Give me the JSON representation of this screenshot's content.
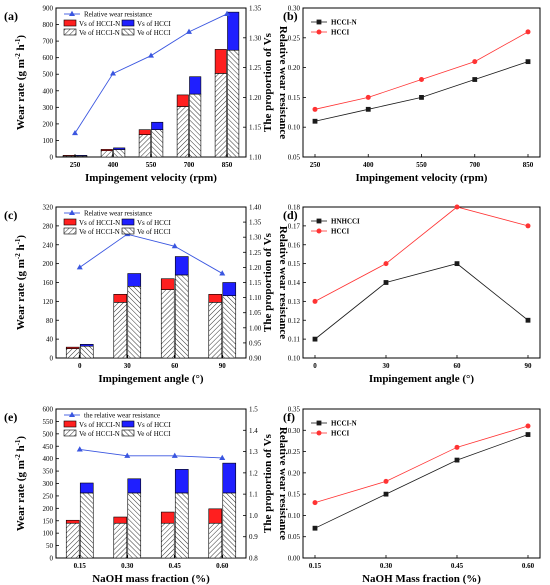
{
  "colors": {
    "red": "#ff1f1f",
    "blue": "#1f1fff",
    "tri": "#3a56e0",
    "black": "#1a1a1a",
    "redline": "#ff3333"
  },
  "chart_data": [
    {
      "panel": "(a)",
      "type": "bar",
      "categories": [
        "250",
        "400",
        "550",
        "700",
        "850"
      ],
      "xlabel": "Impingement velocity (rpm)",
      "ylabel": "Wear rate (g m-2 h-1)",
      "y2label": "Relative wear resistance",
      "ylim": [
        0,
        900
      ],
      "yticks": [
        "0",
        "100",
        "200",
        "300",
        "400",
        "500",
        "600",
        "700",
        "800",
        "900"
      ],
      "y2lim": [
        1.1,
        1.35
      ],
      "y2ticks": [
        "1.10",
        "1.15",
        "1.20",
        "1.25",
        "1.30",
        "1.35"
      ],
      "legend": [
        "Relative wear resistance",
        "Vs of HCCI-N",
        "Ve of HCCI-N",
        "Vs of HCCI",
        "Ve of HCCI"
      ],
      "series": [
        {
          "name": "Ve of HCCI-N",
          "values": [
            5,
            38,
            135,
            305,
            505
          ]
        },
        {
          "name": "Vs of HCCI-N",
          "values": [
            5,
            8,
            30,
            70,
            145
          ]
        },
        {
          "name": "Ve of HCCI",
          "values": [
            5,
            45,
            165,
            380,
            645
          ]
        },
        {
          "name": "Vs of HCCI",
          "values": [
            5,
            10,
            45,
            105,
            230
          ]
        },
        {
          "name": "Relative wear resistance",
          "values": [
            1.14,
            1.24,
            1.27,
            1.31,
            1.34
          ]
        }
      ]
    },
    {
      "panel": "(b)",
      "type": "line",
      "categories": [
        "250",
        "400",
        "550",
        "700",
        "850"
      ],
      "xlabel": "Impingement velocity (rpm)",
      "ylabel": "The proportion of Vs",
      "ylim": [
        0.05,
        0.3
      ],
      "yticks": [
        "0.05",
        "0.10",
        "0.15",
        "0.20",
        "0.25",
        "0.30"
      ],
      "legend": [
        "HCCI-N",
        "HCCI"
      ],
      "series": [
        {
          "name": "HCCI-N",
          "values": [
            0.11,
            0.13,
            0.15,
            0.18,
            0.21
          ]
        },
        {
          "name": "HCCI",
          "values": [
            0.13,
            0.15,
            0.18,
            0.21,
            0.26
          ]
        }
      ]
    },
    {
      "panel": "(c)",
      "type": "bar",
      "categories": [
        "0",
        "30",
        "60",
        "90"
      ],
      "xlabel": "Impingement angle (°)",
      "ylabel": "Wear rate (g m-2 h-1)",
      "y2label": "Relative wear resistance",
      "ylim": [
        0,
        320
      ],
      "yticks": [
        "0",
        "40",
        "80",
        "120",
        "160",
        "200",
        "240",
        "280",
        "320"
      ],
      "y2lim": [
        0.9,
        1.4
      ],
      "y2ticks": [
        "0.90",
        "0.95",
        "1.00",
        "1.05",
        "1.10",
        "1.15",
        "1.20",
        "1.25",
        "1.30",
        "1.35",
        "1.40"
      ],
      "legend": [
        "Relative wear resistance",
        "Vs of HCCI-N",
        "Ve of HCCI-N",
        "Vs of HCCI",
        "Ve of HCCI"
      ],
      "series": [
        {
          "name": "Ve of HCCI-N",
          "values": [
            20,
            118,
            145,
            118
          ]
        },
        {
          "name": "Vs of HCCI-N",
          "values": [
            3,
            17,
            23,
            17
          ]
        },
        {
          "name": "Ve of HCCI",
          "values": [
            25,
            152,
            176,
            132
          ]
        },
        {
          "name": "Vs of HCCI",
          "values": [
            4,
            27,
            39,
            28
          ]
        },
        {
          "name": "Relative wear resistance",
          "values": [
            1.2,
            1.31,
            1.27,
            1.18
          ]
        }
      ]
    },
    {
      "panel": "(d)",
      "type": "line",
      "categories": [
        "0",
        "30",
        "60",
        "90"
      ],
      "xlabel": "Impingement angle (°)",
      "ylabel": "The proportion of Vs",
      "ylim": [
        0.1,
        0.18
      ],
      "yticks": [
        "0.10",
        "0.11",
        "0.12",
        "0.13",
        "0.14",
        "0.15",
        "0.16",
        "0.17",
        "0.18"
      ],
      "legend": [
        "HNHCCI",
        "HCCI"
      ],
      "series": [
        {
          "name": "HNHCCI",
          "values": [
            0.11,
            0.14,
            0.15,
            0.12
          ]
        },
        {
          "name": "HCCI",
          "values": [
            0.13,
            0.15,
            0.18,
            0.17
          ]
        }
      ]
    },
    {
      "panel": "(e)",
      "type": "bar",
      "categories": [
        "0.15",
        "0.30",
        "0.45",
        "0.60"
      ],
      "xlabel": "NaOH mass fraction (%)",
      "ylabel": "Wear rate (g m-2 h-1)",
      "y2label": "Relative wear resistance",
      "ylim": [
        0,
        600
      ],
      "yticks": [
        "0",
        "50",
        "100",
        "150",
        "200",
        "250",
        "300",
        "350",
        "400",
        "450",
        "500",
        "550",
        "600"
      ],
      "y2lim": [
        0.8,
        1.5
      ],
      "y2ticks": [
        "0.8",
        "0.9",
        "1.0",
        "1.1",
        "1.2",
        "1.3",
        "1.4",
        "1.5"
      ],
      "legend": [
        "the relative wear resistance",
        "Vs of HCCI-N",
        "Ve of HCCI-N",
        "Vs of HCCI",
        "Ve of HCCI"
      ],
      "series": [
        {
          "name": "Ve of HCCI-N",
          "values": [
            140,
            140,
            140,
            140
          ]
        },
        {
          "name": "Vs of HCCI-N",
          "values": [
            12,
            25,
            45,
            58
          ]
        },
        {
          "name": "Ve of HCCI",
          "values": [
            262,
            262,
            262,
            262
          ]
        },
        {
          "name": "Vs of HCCI",
          "values": [
            40,
            57,
            95,
            120
          ]
        },
        {
          "name": "the relative wear resistance",
          "values": [
            1.31,
            1.28,
            1.28,
            1.27
          ]
        }
      ]
    },
    {
      "panel": "(f)",
      "type": "line",
      "categories": [
        "0.15",
        "0.30",
        "0.45",
        "0.60"
      ],
      "xlabel": "NaOH Mass fraction (%)",
      "ylabel": "The proportion of Vs",
      "ylim": [
        0.0,
        0.35
      ],
      "yticks": [
        "0.00",
        "0.05",
        "0.10",
        "0.15",
        "0.20",
        "0.25",
        "0.30",
        "0.35"
      ],
      "legend": [
        "HCCI-N",
        "HCCI"
      ],
      "series": [
        {
          "name": "HCCI-N",
          "values": [
            0.07,
            0.15,
            0.23,
            0.29
          ]
        },
        {
          "name": "HCCI",
          "values": [
            0.13,
            0.18,
            0.26,
            0.31
          ]
        }
      ]
    }
  ]
}
